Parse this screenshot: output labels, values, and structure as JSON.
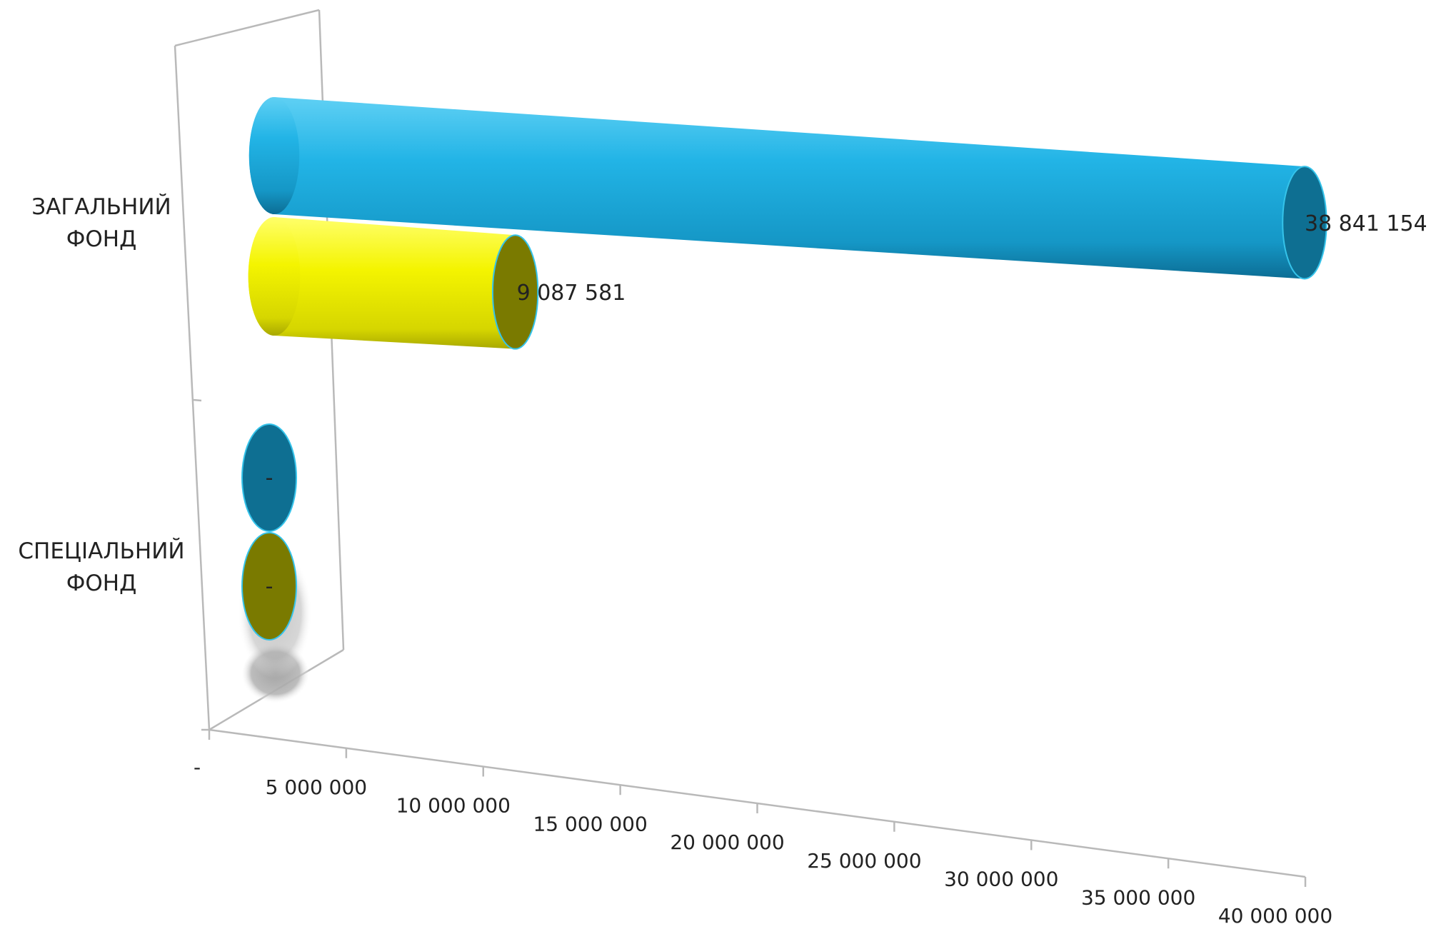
{
  "chart_data": {
    "type": "bar",
    "orientation": "horizontal",
    "style": "3d-cylinder",
    "categories": [
      [
        "ЗАГАЛЬНИЙ",
        "ФОНД"
      ],
      [
        "СПЕЦІАЛЬНИЙ",
        "ФОНД"
      ]
    ],
    "series": [
      {
        "values": [
          38841154,
          0
        ],
        "color": "#1eaee0",
        "end_color": "#0e6f92",
        "labels": [
          "38 841 154",
          "-"
        ]
      },
      {
        "values": [
          9087581,
          0
        ],
        "color": "#f2f200",
        "end_color": "#7a7a00",
        "labels": [
          "9 087 581",
          "-"
        ]
      }
    ],
    "x_ticks": [
      {
        "value": 0,
        "label": "-"
      },
      {
        "value": 5000000,
        "label": "5 000 000"
      },
      {
        "value": 10000000,
        "label": "10 000 000"
      },
      {
        "value": 15000000,
        "label": "15 000 000"
      },
      {
        "value": 20000000,
        "label": "20 000 000"
      },
      {
        "value": 25000000,
        "label": "25 000 000"
      },
      {
        "value": 30000000,
        "label": "30 000 000"
      },
      {
        "value": 35000000,
        "label": "35 000 000"
      },
      {
        "value": 40000000,
        "label": "40 000 000"
      }
    ],
    "xlim": [
      0,
      40000000
    ],
    "legend": "none",
    "grid": false
  }
}
